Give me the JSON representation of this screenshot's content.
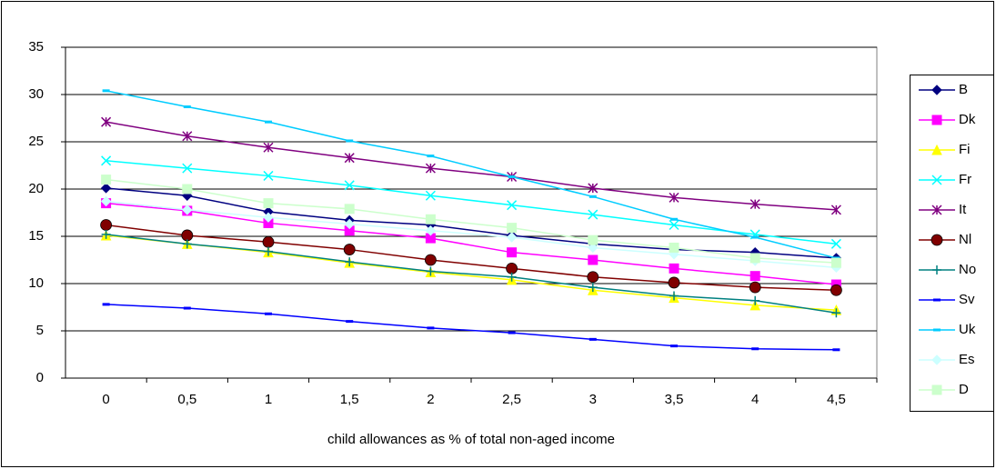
{
  "chart_data": {
    "type": "line",
    "x_label": "child allowances as % of total non-aged income",
    "categories": [
      "0",
      "0,5",
      "1",
      "1,5",
      "2",
      "2,5",
      "3",
      "3,5",
      "4",
      "4,5"
    ],
    "ylim": [
      0,
      35
    ],
    "yticks": [
      0,
      5,
      10,
      15,
      20,
      25,
      30,
      35
    ],
    "grid": true,
    "legend": "right",
    "series": [
      {
        "name": "B",
        "color": "#000080",
        "marker": "diamond",
        "values": [
          20.1,
          19.3,
          17.6,
          16.7,
          16.2,
          15.1,
          14.2,
          13.6,
          13.3,
          12.7
        ]
      },
      {
        "name": "Dk",
        "color": "#ff00ff",
        "marker": "square",
        "values": [
          18.5,
          17.7,
          16.4,
          15.6,
          14.8,
          13.3,
          12.5,
          11.6,
          10.8,
          9.9
        ]
      },
      {
        "name": "Fi",
        "color": "#ffff00",
        "marker": "triangle",
        "values": [
          15.1,
          14.2,
          13.3,
          12.2,
          11.2,
          10.4,
          9.3,
          8.5,
          7.7,
          7.2
        ]
      },
      {
        "name": "Fr",
        "color": "#00ffff",
        "marker": "x",
        "values": [
          23.0,
          22.2,
          21.4,
          20.4,
          19.3,
          18.3,
          17.3,
          16.2,
          15.2,
          14.2
        ]
      },
      {
        "name": "It",
        "color": "#800080",
        "marker": "asterisk",
        "values": [
          27.1,
          25.6,
          24.4,
          23.3,
          22.2,
          21.3,
          20.1,
          19.1,
          18.4,
          17.8
        ]
      },
      {
        "name": "Nl",
        "color": "#800000",
        "marker": "circle",
        "values": [
          16.2,
          15.1,
          14.4,
          13.6,
          12.5,
          11.6,
          10.7,
          10.1,
          9.6,
          9.3
        ]
      },
      {
        "name": "No",
        "color": "#008080",
        "marker": "plus",
        "values": [
          15.2,
          14.2,
          13.4,
          12.3,
          11.3,
          10.7,
          9.6,
          8.7,
          8.2,
          6.9
        ]
      },
      {
        "name": "Sv",
        "color": "#0000ff",
        "marker": "dash",
        "values": [
          7.8,
          7.4,
          6.8,
          6.0,
          5.3,
          4.8,
          4.1,
          3.4,
          3.1,
          3.0
        ]
      },
      {
        "name": "Uk",
        "color": "#00ccff",
        "marker": "dash",
        "values": [
          30.4,
          28.7,
          27.1,
          25.1,
          23.5,
          21.3,
          19.2,
          16.8,
          14.9,
          12.7
        ]
      },
      {
        "name": "Es",
        "color": "#ccffff",
        "marker": "diamond",
        "values": [
          18.7,
          17.8,
          17.0,
          16.3,
          15.6,
          14.9,
          13.8,
          13.1,
          12.4,
          11.7
        ]
      },
      {
        "name": "D",
        "color": "#ccffcc",
        "marker": "square",
        "values": [
          21.0,
          20.0,
          18.5,
          17.9,
          16.8,
          15.9,
          14.6,
          13.8,
          12.7,
          12.2
        ]
      }
    ]
  }
}
